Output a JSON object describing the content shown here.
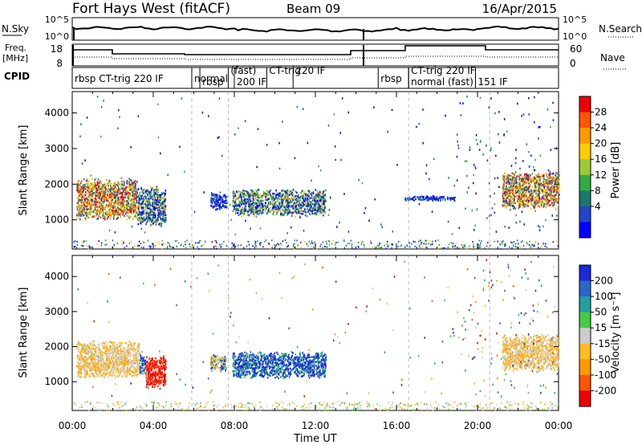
{
  "header": {
    "radar_title": "Fort Hays West (fitACF)",
    "beam_label": "Beam 09",
    "date_label": "16/Apr/2015"
  },
  "noise_panel": {
    "left_label": "N.Sky",
    "right_label": "N.Search",
    "left_ticks": [
      "10^5",
      "10^0"
    ],
    "right_ticks": [
      "10^5",
      "10^0"
    ]
  },
  "freq_panel": {
    "left_label_line1": "Freq.",
    "left_label_line2": "[MHz]",
    "right_label": "Nave",
    "left_ticks": [
      "18",
      "8"
    ],
    "right_ticks": [
      "60",
      "0"
    ]
  },
  "cpid_panel": {
    "label": "CPID",
    "segments": [
      {
        "text": "rbsp  CT-trig  220  IF",
        "start_hour": 0.0
      },
      {
        "text": "normal",
        "start_hour": 5.9
      },
      {
        "text": "(fast)",
        "start_hour": 7.7
      },
      {
        "text": "CT-trig",
        "start_hour": 9.6
      },
      {
        "text": "rbsp",
        "start_hour": 6.3
      },
      {
        "text": "200  IF",
        "start_hour": 8.0
      },
      {
        "text": "220  IF",
        "start_hour": 10.9
      },
      {
        "text": "rbsp",
        "start_hour": 15.1
      },
      {
        "text": "CT-trig  220  IF",
        "start_hour": 16.6
      },
      {
        "text": "normal  (fast)",
        "start_hour": 16.6
      },
      {
        "text": "151  IF",
        "start_hour": 19.9
      }
    ]
  },
  "x_axis": {
    "label": "Time UT",
    "ticks": [
      "00:00",
      "04:00",
      "08:00",
      "12:00",
      "16:00",
      "20:00",
      "00:00"
    ]
  },
  "power_colorbar": {
    "label": "Power [dB]",
    "ticks": [
      "28",
      "24",
      "20",
      "16",
      "12",
      "8",
      "4"
    ],
    "colors": [
      "#ee0000",
      "#ff5500",
      "#ff9900",
      "#ffcc00",
      "#99cc33",
      "#33aa44",
      "#1a7a6a",
      "#2244cc",
      "#0000ff"
    ]
  },
  "velocity_colorbar": {
    "label": "Velocity [m s⁻¹]",
    "ticks": [
      "200",
      "100",
      "50",
      "15",
      "-15",
      "-50",
      "-100",
      "-200"
    ],
    "colors": [
      "#1a2ad8",
      "#2868c8",
      "#22a0a0",
      "#44cc44",
      "#cccccc",
      "#ffbb22",
      "#ff9900",
      "#ff5500",
      "#ee0000"
    ]
  },
  "chart_data": [
    {
      "type": "heatmap",
      "panel": "power",
      "ylabel": "Slant Range [km]",
      "xlabel": "",
      "xlim_hours": [
        0,
        24
      ],
      "ylim_km": [
        180,
        4600
      ],
      "yticks": [
        1000,
        2000,
        3000,
        4000
      ],
      "regions": [
        {
          "t0": 0.2,
          "t1": 3.2,
          "r0": 1000,
          "r1": 2200,
          "level": "high"
        },
        {
          "t0": 3.2,
          "t1": 4.6,
          "r0": 800,
          "r1": 2000,
          "level": "mid"
        },
        {
          "t0": 6.8,
          "t1": 7.6,
          "r0": 1300,
          "r1": 1800,
          "level": "low"
        },
        {
          "t0": 7.9,
          "t1": 12.5,
          "r0": 1100,
          "r1": 1900,
          "level": "mid"
        },
        {
          "t0": 16.4,
          "t1": 18.9,
          "r0": 1550,
          "r1": 1700,
          "level": "low"
        },
        {
          "t0": 21.2,
          "t1": 24.0,
          "r0": 1300,
          "r1": 2400,
          "level": "high"
        }
      ]
    },
    {
      "type": "heatmap",
      "panel": "velocity",
      "ylabel": "Slant Range [km]",
      "xlabel": "Time UT",
      "xlim_hours": [
        0,
        24
      ],
      "ylim_km": [
        180,
        4600
      ],
      "yticks": [
        1000,
        2000,
        3000,
        4000
      ],
      "regions": [
        {
          "t0": 0.2,
          "t1": 3.3,
          "r0": 1100,
          "r1": 2200,
          "level": "neg_slow"
        },
        {
          "t0": 3.3,
          "t1": 3.6,
          "r0": 1200,
          "r1": 1800,
          "level": "pos_fast"
        },
        {
          "t0": 3.6,
          "t1": 4.6,
          "r0": 800,
          "r1": 1800,
          "level": "neg_fast"
        },
        {
          "t0": 6.8,
          "t1": 7.6,
          "r0": 1300,
          "r1": 1800,
          "level": "mixed"
        },
        {
          "t0": 7.9,
          "t1": 12.5,
          "r0": 1100,
          "r1": 1900,
          "level": "pos_fast"
        },
        {
          "t0": 21.2,
          "t1": 24.0,
          "r0": 1300,
          "r1": 2400,
          "level": "neg_slow"
        }
      ]
    }
  ]
}
